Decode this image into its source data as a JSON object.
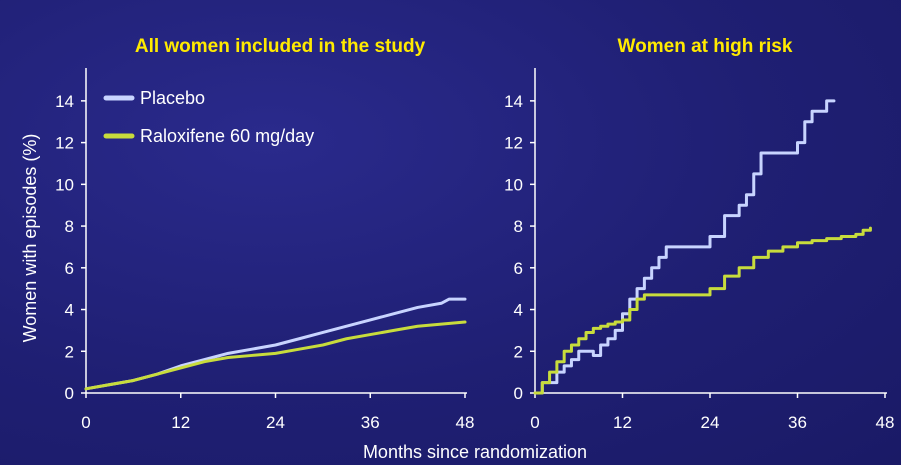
{
  "chart_data": [
    {
      "type": "line",
      "title": "All women included in the study",
      "xlabel": "Months since randomization",
      "ylabel": "Women with episodes (%)",
      "xlim": [
        0,
        48
      ],
      "ylim": [
        0,
        15
      ],
      "xticks": [
        "0",
        "12",
        "24",
        "36",
        "48"
      ],
      "yticks": [
        "0",
        "2",
        "4",
        "6",
        "8",
        "10",
        "12",
        "14"
      ],
      "legend_position": "top-left",
      "series": [
        {
          "name": "Placebo",
          "color": "#c8d4ff",
          "step": false,
          "x": [
            0,
            3,
            6,
            9,
            12,
            15,
            18,
            21,
            24,
            27,
            30,
            33,
            36,
            39,
            42,
            45,
            46,
            48
          ],
          "y": [
            0.2,
            0.4,
            0.6,
            0.9,
            1.3,
            1.6,
            1.9,
            2.1,
            2.3,
            2.6,
            2.9,
            3.2,
            3.5,
            3.8,
            4.1,
            4.3,
            4.5,
            4.5
          ]
        },
        {
          "name": "Raloxifene 60 mg/day",
          "color": "#c8dc3c",
          "step": false,
          "x": [
            0,
            3,
            6,
            9,
            12,
            15,
            18,
            21,
            24,
            27,
            30,
            33,
            36,
            39,
            42,
            45,
            48
          ],
          "y": [
            0.2,
            0.4,
            0.6,
            0.9,
            1.2,
            1.5,
            1.7,
            1.8,
            1.9,
            2.1,
            2.3,
            2.6,
            2.8,
            3.0,
            3.2,
            3.3,
            3.4
          ]
        }
      ]
    },
    {
      "type": "line",
      "title": "Women at high risk",
      "xlim": [
        0,
        48
      ],
      "ylim": [
        0,
        15
      ],
      "xticks": [
        "0",
        "12",
        "24",
        "36",
        "48"
      ],
      "yticks": [
        "0",
        "2",
        "4",
        "6",
        "8",
        "10",
        "12",
        "14"
      ],
      "series": [
        {
          "name": "Placebo",
          "color": "#c8d4ff",
          "step": true,
          "x": [
            0,
            1,
            2,
            3,
            4,
            5,
            6,
            7,
            8,
            9,
            10,
            11,
            12,
            13,
            14,
            15,
            16,
            17,
            18,
            20,
            22,
            24,
            26,
            28,
            29,
            30,
            31,
            33,
            35,
            36,
            37,
            38,
            40,
            41
          ],
          "y": [
            0,
            0.5,
            0.5,
            1.0,
            1.3,
            1.6,
            2.0,
            2.0,
            1.8,
            2.3,
            2.6,
            3.0,
            3.8,
            4.5,
            5.0,
            5.5,
            6.0,
            6.5,
            7.0,
            7.0,
            7.0,
            7.5,
            8.5,
            9.0,
            9.5,
            10.5,
            11.5,
            11.5,
            11.5,
            12.0,
            13.0,
            13.5,
            14.0,
            14.0
          ]
        },
        {
          "name": "Raloxifene 60 mg/day",
          "color": "#c8dc3c",
          "step": true,
          "x": [
            0,
            1,
            2,
            3,
            4,
            5,
            6,
            7,
            8,
            9,
            10,
            11,
            12,
            13,
            14,
            15,
            16,
            18,
            20,
            22,
            24,
            26,
            28,
            30,
            32,
            34,
            36,
            38,
            40,
            42,
            44,
            45,
            46
          ],
          "y": [
            0,
            0.5,
            1.0,
            1.5,
            2.0,
            2.3,
            2.6,
            2.9,
            3.1,
            3.2,
            3.3,
            3.4,
            3.5,
            4.0,
            4.5,
            4.7,
            4.7,
            4.7,
            4.7,
            4.7,
            5.0,
            5.6,
            6.0,
            6.5,
            6.8,
            7.0,
            7.2,
            7.3,
            7.4,
            7.5,
            7.6,
            7.8,
            7.9
          ]
        }
      ]
    }
  ]
}
